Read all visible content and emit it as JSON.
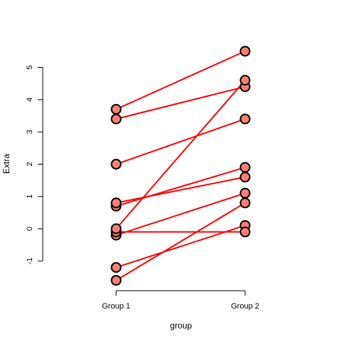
{
  "chart_data": {
    "type": "line",
    "title": "",
    "xlabel": "group",
    "ylabel": "Extra",
    "categories": [
      "Group 1",
      "Group 2"
    ],
    "y_ticks": [
      -1,
      0,
      1,
      2,
      3,
      4,
      5
    ],
    "y_tick_labels": [
      "-1",
      "0",
      "1",
      "2",
      "3",
      "4",
      "5"
    ],
    "ylim": [
      -1.6,
      5.5
    ],
    "grid": false,
    "line_color": "#ff0000",
    "point_fill": "#fa8072",
    "point_stroke": "#000000",
    "pairs": [
      {
        "group1": 0.7,
        "group2": 1.9
      },
      {
        "group1": -1.6,
        "group2": 0.8
      },
      {
        "group1": -0.2,
        "group2": 1.1
      },
      {
        "group1": -1.2,
        "group2": 0.1
      },
      {
        "group1": -0.1,
        "group2": -0.1
      },
      {
        "group1": 3.4,
        "group2": 4.4
      },
      {
        "group1": 3.7,
        "group2": 5.5
      },
      {
        "group1": 0.8,
        "group2": 1.6
      },
      {
        "group1": 0.0,
        "group2": 4.6
      },
      {
        "group1": 2.0,
        "group2": 3.4
      }
    ]
  }
}
